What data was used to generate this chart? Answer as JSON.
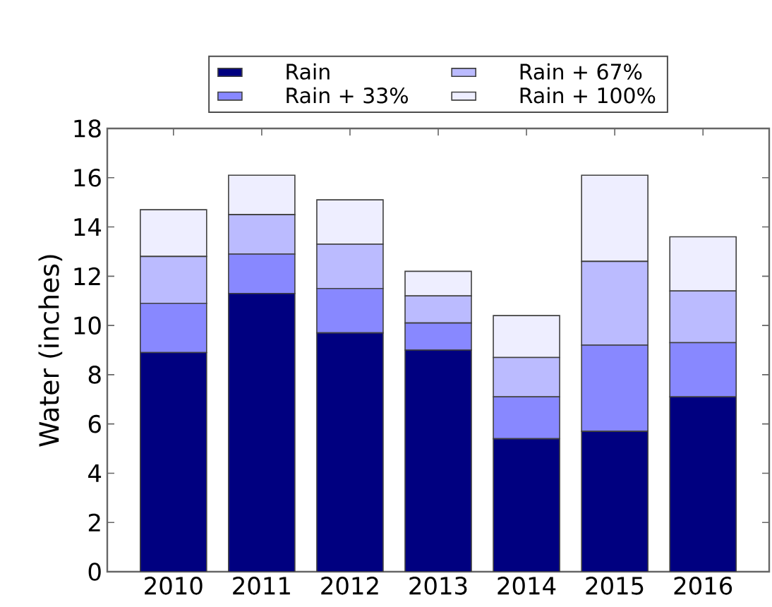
{
  "chart_data": {
    "type": "bar",
    "stacked": true,
    "ylabel": "Water (inches)",
    "categories": [
      "2010",
      "2011",
      "2012",
      "2013",
      "2014",
      "2015",
      "2016"
    ],
    "series": [
      {
        "name": "Rain",
        "color": "#000080",
        "values": [
          8.9,
          11.3,
          9.7,
          9.0,
          5.4,
          5.7,
          7.1
        ]
      },
      {
        "name": "Rain + 33%",
        "color": "#8888ff",
        "values": [
          2.0,
          1.6,
          1.8,
          1.1,
          1.7,
          3.5,
          2.2
        ]
      },
      {
        "name": "Rain + 67%",
        "color": "#bbbbff",
        "values": [
          1.9,
          1.6,
          1.8,
          1.1,
          1.6,
          3.4,
          2.1
        ]
      },
      {
        "name": "Rain + 100%",
        "color": "#eeeeff",
        "values": [
          1.9,
          1.6,
          1.8,
          1.0,
          1.7,
          3.5,
          2.2
        ]
      }
    ],
    "ylim": [
      0,
      18
    ],
    "yticks": [
      0,
      2,
      4,
      6,
      8,
      10,
      12,
      14,
      16,
      18
    ],
    "legend": "top"
  }
}
